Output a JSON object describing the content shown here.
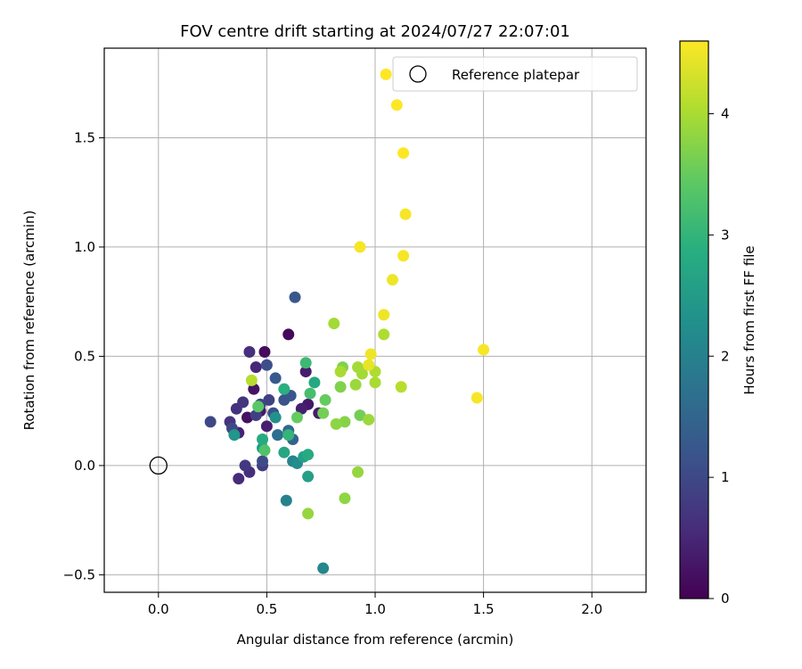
{
  "chart_data": {
    "type": "scatter",
    "title": "FOV centre drift starting at 2024/07/27 22:07:01",
    "xlabel": "Angular distance from reference (arcmin)",
    "ylabel": "Rotation from reference (arcmin)",
    "colorbar_label": "Hours from first FF file",
    "xlim": [
      -0.25,
      2.25
    ],
    "ylim": [
      -0.58,
      1.91
    ],
    "x_ticks": [
      0.0,
      0.5,
      1.0,
      1.5,
      2.0
    ],
    "x_tick_labels": [
      "0.0",
      "0.5",
      "1.0",
      "1.5",
      "2.0"
    ],
    "y_ticks": [
      -0.5,
      0.0,
      0.5,
      1.0,
      1.5
    ],
    "y_tick_labels": [
      "−0.5",
      "0.0",
      "0.5",
      "1.0",
      "1.5"
    ],
    "colorbar_range": [
      0,
      4.6
    ],
    "colorbar_ticks": [
      0,
      1,
      2,
      3,
      4
    ],
    "colorbar_tick_labels": [
      "0",
      "1",
      "2",
      "3",
      "4"
    ],
    "colormap": "viridis",
    "grid": true,
    "legend_position": "top-right",
    "legend": [
      {
        "label": "Reference platepar",
        "marker": "open-circle",
        "x": 0.0,
        "y": 0.0
      }
    ],
    "points": [
      {
        "x": 0.6,
        "y": 0.6,
        "h": 0.1
      },
      {
        "x": 0.49,
        "y": 0.52,
        "h": 0.15
      },
      {
        "x": 0.41,
        "y": 0.22,
        "h": 0.2
      },
      {
        "x": 0.44,
        "y": 0.35,
        "h": 0.25
      },
      {
        "x": 0.47,
        "y": 0.25,
        "h": 0.3
      },
      {
        "x": 0.69,
        "y": 0.28,
        "h": 0.3
      },
      {
        "x": 0.68,
        "y": 0.43,
        "h": 0.35
      },
      {
        "x": 0.74,
        "y": 0.24,
        "h": 0.35
      },
      {
        "x": 0.66,
        "y": 0.26,
        "h": 0.4
      },
      {
        "x": 0.5,
        "y": 0.18,
        "h": 0.4
      },
      {
        "x": 0.37,
        "y": 0.15,
        "h": 0.45
      },
      {
        "x": 0.45,
        "y": 0.45,
        "h": 0.5
      },
      {
        "x": 0.37,
        "y": -0.06,
        "h": 0.55
      },
      {
        "x": 0.42,
        "y": -0.03,
        "h": 0.6
      },
      {
        "x": 0.42,
        "y": 0.52,
        "h": 0.6
      },
      {
        "x": 0.36,
        "y": 0.26,
        "h": 0.65
      },
      {
        "x": 0.39,
        "y": 0.29,
        "h": 0.7
      },
      {
        "x": 0.33,
        "y": 0.2,
        "h": 0.7
      },
      {
        "x": 0.4,
        "y": 0.0,
        "h": 0.75
      },
      {
        "x": 0.48,
        "y": 0.0,
        "h": 0.8
      },
      {
        "x": 0.45,
        "y": 0.23,
        "h": 0.85
      },
      {
        "x": 0.51,
        "y": 0.3,
        "h": 0.9
      },
      {
        "x": 0.47,
        "y": 0.28,
        "h": 0.95
      },
      {
        "x": 0.24,
        "y": 0.2,
        "h": 1.0
      },
      {
        "x": 0.34,
        "y": 0.17,
        "h": 1.0
      },
      {
        "x": 0.48,
        "y": 0.02,
        "h": 1.05
      },
      {
        "x": 0.5,
        "y": 0.46,
        "h": 1.1
      },
      {
        "x": 0.53,
        "y": 0.24,
        "h": 1.1
      },
      {
        "x": 0.58,
        "y": 0.3,
        "h": 1.15
      },
      {
        "x": 0.61,
        "y": 0.32,
        "h": 1.2
      },
      {
        "x": 0.63,
        "y": 0.77,
        "h": 1.25
      },
      {
        "x": 0.54,
        "y": 0.4,
        "h": 1.3
      },
      {
        "x": 0.62,
        "y": 0.12,
        "h": 1.45
      },
      {
        "x": 0.6,
        "y": 0.16,
        "h": 1.55
      },
      {
        "x": 0.55,
        "y": 0.14,
        "h": 1.65
      },
      {
        "x": 0.59,
        "y": -0.16,
        "h": 2.0
      },
      {
        "x": 0.62,
        "y": 0.02,
        "h": 2.05
      },
      {
        "x": 0.76,
        "y": -0.47,
        "h": 2.1
      },
      {
        "x": 0.64,
        "y": 0.01,
        "h": 2.2
      },
      {
        "x": 0.54,
        "y": 0.22,
        "h": 2.3
      },
      {
        "x": 0.35,
        "y": 0.14,
        "h": 2.4
      },
      {
        "x": 0.48,
        "y": 0.08,
        "h": 2.5
      },
      {
        "x": 0.67,
        "y": 0.04,
        "h": 2.6
      },
      {
        "x": 0.69,
        "y": -0.05,
        "h": 2.6
      },
      {
        "x": 0.58,
        "y": 0.06,
        "h": 2.7
      },
      {
        "x": 0.72,
        "y": 0.38,
        "h": 2.75
      },
      {
        "x": 0.69,
        "y": 0.05,
        "h": 2.8
      },
      {
        "x": 0.48,
        "y": 0.12,
        "h": 2.8
      },
      {
        "x": 0.58,
        "y": 0.35,
        "h": 2.9
      },
      {
        "x": 0.6,
        "y": 0.14,
        "h": 3.0
      },
      {
        "x": 0.68,
        "y": 0.47,
        "h": 3.1
      },
      {
        "x": 0.7,
        "y": 0.33,
        "h": 3.2
      },
      {
        "x": 0.49,
        "y": 0.07,
        "h": 3.3
      },
      {
        "x": 0.46,
        "y": 0.27,
        "h": 3.4
      },
      {
        "x": 0.64,
        "y": 0.22,
        "h": 3.5
      },
      {
        "x": 0.77,
        "y": 0.3,
        "h": 3.5
      },
      {
        "x": 0.76,
        "y": 0.24,
        "h": 3.6
      },
      {
        "x": 0.93,
        "y": 0.23,
        "h": 3.6
      },
      {
        "x": 0.84,
        "y": 0.36,
        "h": 3.7
      },
      {
        "x": 0.85,
        "y": 0.45,
        "h": 3.7
      },
      {
        "x": 0.86,
        "y": 0.2,
        "h": 3.75
      },
      {
        "x": 0.82,
        "y": 0.19,
        "h": 3.8
      },
      {
        "x": 0.86,
        "y": -0.15,
        "h": 3.8
      },
      {
        "x": 0.69,
        "y": -0.22,
        "h": 3.85
      },
      {
        "x": 0.92,
        "y": -0.03,
        "h": 3.85
      },
      {
        "x": 0.97,
        "y": 0.21,
        "h": 3.9
      },
      {
        "x": 0.91,
        "y": 0.37,
        "h": 3.9
      },
      {
        "x": 0.94,
        "y": 0.42,
        "h": 3.95
      },
      {
        "x": 0.92,
        "y": 0.45,
        "h": 3.95
      },
      {
        "x": 0.81,
        "y": 0.65,
        "h": 3.95
      },
      {
        "x": 0.84,
        "y": 0.43,
        "h": 4.0
      },
      {
        "x": 1.0,
        "y": 0.38,
        "h": 4.0
      },
      {
        "x": 1.0,
        "y": 0.43,
        "h": 4.05
      },
      {
        "x": 1.04,
        "y": 0.6,
        "h": 4.05
      },
      {
        "x": 1.12,
        "y": 0.36,
        "h": 4.1
      },
      {
        "x": 0.43,
        "y": 0.39,
        "h": 4.1
      },
      {
        "x": 0.97,
        "y": 0.46,
        "h": 4.45
      },
      {
        "x": 0.98,
        "y": 0.51,
        "h": 4.5
      },
      {
        "x": 1.04,
        "y": 0.69,
        "h": 4.5
      },
      {
        "x": 1.08,
        "y": 0.85,
        "h": 4.5
      },
      {
        "x": 0.93,
        "y": 1.0,
        "h": 4.55
      },
      {
        "x": 1.13,
        "y": 0.96,
        "h": 4.55
      },
      {
        "x": 1.14,
        "y": 1.15,
        "h": 4.55
      },
      {
        "x": 1.13,
        "y": 1.43,
        "h": 4.6
      },
      {
        "x": 1.1,
        "y": 1.65,
        "h": 4.6
      },
      {
        "x": 1.05,
        "y": 1.79,
        "h": 4.6
      },
      {
        "x": 1.47,
        "y": 0.31,
        "h": 4.55
      },
      {
        "x": 1.5,
        "y": 0.53,
        "h": 4.55
      }
    ]
  }
}
